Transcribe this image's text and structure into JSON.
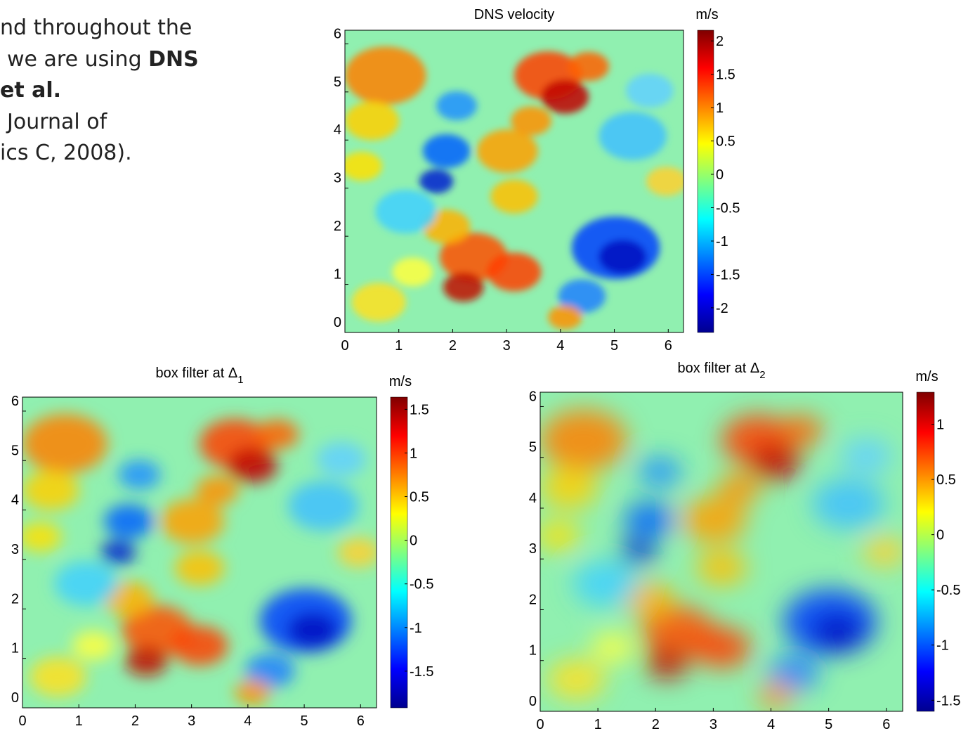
{
  "text_lines": [
    [
      {
        "text": "nd throughout the",
        "bold": false
      }
    ],
    [
      {
        "text": "we are using ",
        "bold": false
      },
      {
        "text": "DNS",
        "bold": true
      }
    ],
    [
      {
        "text": "et al.",
        "bold": true
      }
    ],
    [
      {
        "text": "Journal of",
        "bold": false
      }
    ],
    [
      {
        "text": "ics C, 2008).",
        "bold": false
      }
    ]
  ],
  "chart_data": [
    {
      "type": "heatmap",
      "title": "DNS velocity",
      "colorbar_label": "m/s",
      "xlim": [
        0,
        6.283
      ],
      "ylim": [
        0,
        6.283
      ],
      "xticks": [
        0,
        1,
        2,
        3,
        4,
        5,
        6
      ],
      "yticks": [
        0,
        1,
        2,
        3,
        4,
        5,
        6
      ],
      "clim": [
        -2.37,
        2.16
      ],
      "cticks": [
        -2,
        -1.5,
        -1,
        -0.5,
        0,
        0.5,
        1,
        1.5,
        2
      ]
    },
    {
      "type": "heatmap",
      "title": "box filter at Δ",
      "title_subscript": "1",
      "colorbar_label": "m/s",
      "xlim": [
        0,
        6.283
      ],
      "ylim": [
        0,
        6.283
      ],
      "xticks": [
        0,
        1,
        2,
        3,
        4,
        5,
        6
      ],
      "yticks": [
        0,
        1,
        2,
        3,
        4,
        5,
        6
      ],
      "clim": [
        -1.92,
        1.64
      ],
      "cticks": [
        -1.5,
        -1,
        -0.5,
        0,
        0.5,
        1,
        1.5
      ]
    },
    {
      "type": "heatmap",
      "title": "box filter at Δ",
      "title_subscript": "2",
      "colorbar_label": "m/s",
      "xlim": [
        0,
        6.283
      ],
      "ylim": [
        0,
        6.283
      ],
      "xticks": [
        0,
        1,
        2,
        3,
        4,
        5,
        6
      ],
      "yticks": [
        0,
        1,
        2,
        3,
        4,
        5,
        6
      ],
      "clim": [
        -1.6,
        1.29
      ],
      "cticks": [
        -1.5,
        -1,
        -0.5,
        0,
        0.5,
        1
      ]
    }
  ]
}
